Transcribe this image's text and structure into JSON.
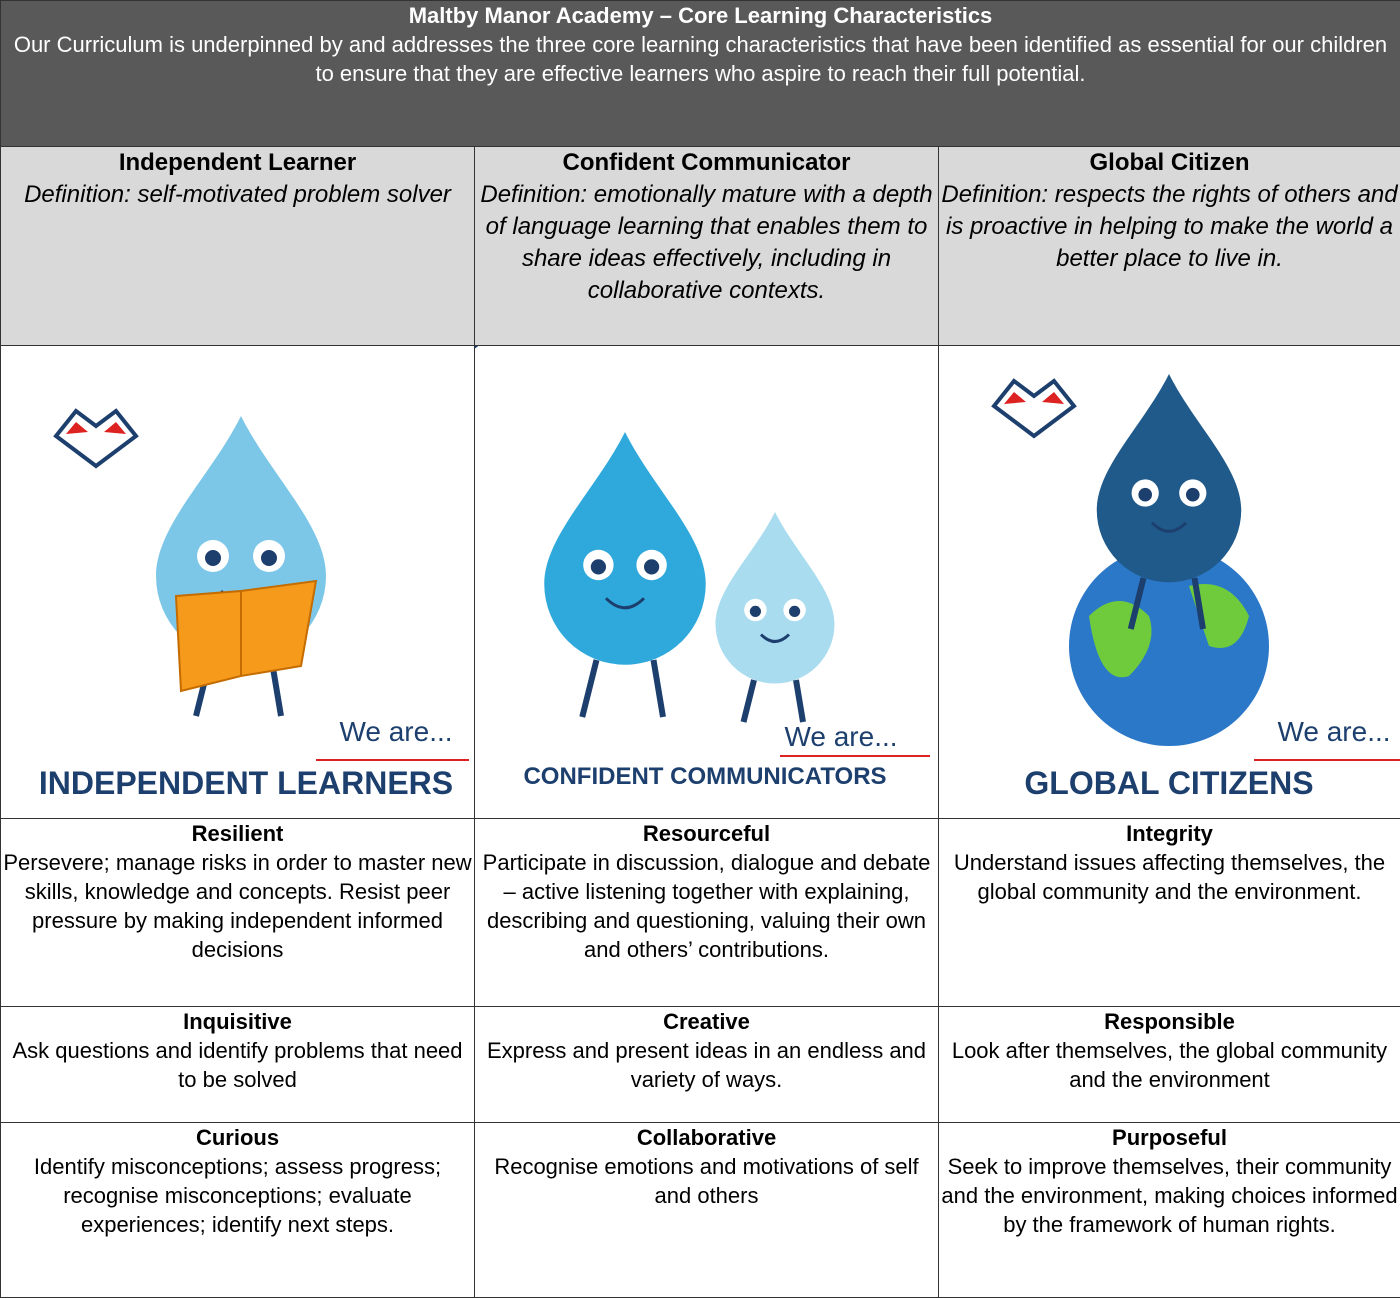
{
  "header": {
    "title": "Maltby Manor Academy – Core Learning Characteristics",
    "text": "Our Curriculum is underpinned by and addresses the three core learning characteristics that have been identified as essential for our children to ensure that they are effective learners who aspire to reach their full potential."
  },
  "columns": [
    {
      "heading": "Independent Learner",
      "definition": "Definition: self-motivated problem solver",
      "we_are": "We are...",
      "caption": "INDEPENDENT LEARNERS"
    },
    {
      "heading": "Confident Communicator",
      "definition": "Definition: emotionally mature with a depth of language learning that enables them to share ideas effectively, including in collaborative contexts.",
      "we_are": "We are...",
      "caption": "CONFIDENT COMMUNICATORS"
    },
    {
      "heading": "Global Citizen",
      "definition": "Definition: respects the rights of others and is proactive in helping to make the world a better place to live in.",
      "we_are": "We are...",
      "caption": "GLOBAL CITIZENS"
    }
  ],
  "rows": [
    [
      {
        "title": "Resilient",
        "text": "Persevere; manage risks in order to master new skills, knowledge and concepts. Resist peer pressure by making independent informed decisions"
      },
      {
        "title": "Resourceful",
        "text": "Participate in discussion, dialogue and debate – active listening together with explaining, describing and questioning, valuing their own and others’ contributions."
      },
      {
        "title": "Integrity",
        "text": "Understand issues affecting themselves, the global community and the environment."
      }
    ],
    [
      {
        "title": "Inquisitive",
        "text": "Ask questions and identify problems that need to be solved"
      },
      {
        "title": "Creative",
        "text": "Express and present ideas in an endless and variety of ways."
      },
      {
        "title": "Responsible",
        "text": "Look after themselves, the global community and the environment"
      }
    ],
    [
      {
        "title": "Curious",
        "text": "Identify misconceptions; assess progress; recognise misconceptions; evaluate experiences; identify next steps."
      },
      {
        "title": "Collaborative",
        "text": "Recognise emotions and motivations of self and others"
      },
      {
        "title": "Purposeful",
        "text": "Seek to improve themselves, their community and the environment, making choices informed by the framework of human rights."
      }
    ]
  ]
}
